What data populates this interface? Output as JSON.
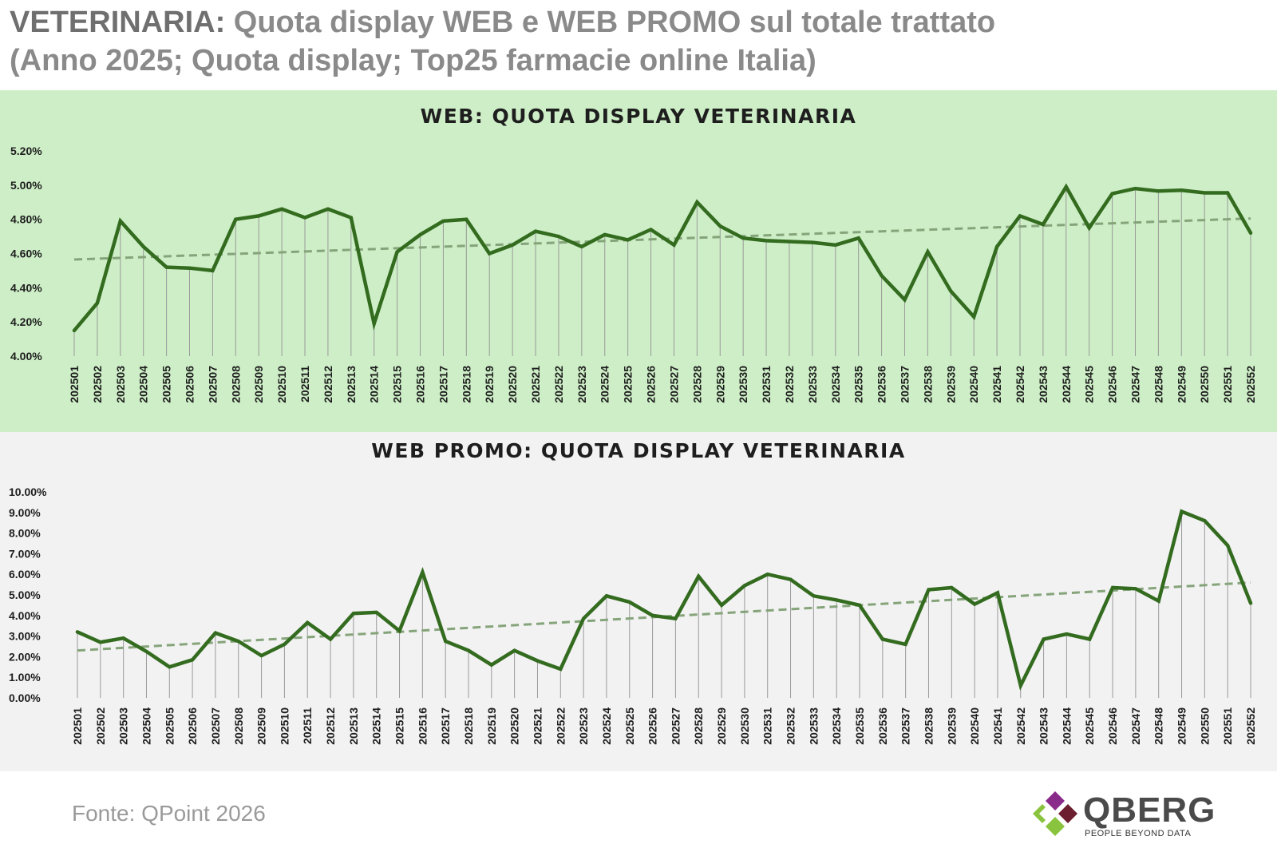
{
  "header": {
    "title_bold": "VETERINARIA:",
    "title_rest": " Quota display WEB e WEB PROMO sul totale trattato",
    "subtitle": "(Anno 2025; Quota display; Top25 farmacie online Italia)"
  },
  "footer": {
    "source": "Fonte: QPoint 2026",
    "logo_name": "QBERG",
    "logo_tagline": "PEOPLE BEYOND DATA"
  },
  "colors": {
    "line": "#336b1f",
    "trend": "#85a47a",
    "web_bg": "#cdeec6",
    "promo_bg": "#f2f2f2",
    "drop": "#9a9a9a"
  },
  "chart_data": [
    {
      "type": "line",
      "title": "WEB: QUOTA DISPLAY  VETERINARIA",
      "categories": [
        "202501",
        "202502",
        "202503",
        "202504",
        "202505",
        "202506",
        "202507",
        "202508",
        "202509",
        "202510",
        "202511",
        "202512",
        "202513",
        "202514",
        "202515",
        "202516",
        "202517",
        "202518",
        "202519",
        "202520",
        "202521",
        "202522",
        "202523",
        "202524",
        "202525",
        "202526",
        "202527",
        "202528",
        "202529",
        "202530",
        "202531",
        "202532",
        "202533",
        "202534",
        "202535",
        "202536",
        "202537",
        "202538",
        "202539",
        "202540",
        "202541",
        "202542",
        "202543",
        "202544",
        "202545",
        "202546",
        "202547",
        "202548",
        "202549",
        "202550",
        "202551",
        "202552"
      ],
      "series": [
        {
          "values": [
            4.15,
            4.31,
            4.79,
            4.64,
            4.52,
            4.515,
            4.5,
            4.8,
            4.82,
            4.86,
            4.81,
            4.86,
            4.81,
            4.19,
            4.61,
            4.71,
            4.79,
            4.8,
            4.6,
            4.65,
            4.73,
            4.7,
            4.64,
            4.71,
            4.68,
            4.74,
            4.65,
            4.9,
            4.76,
            4.69,
            4.675,
            4.67,
            4.665,
            4.65,
            4.69,
            4.47,
            4.33,
            4.61,
            4.38,
            4.23,
            4.64,
            4.82,
            4.77,
            4.99,
            4.75,
            4.95,
            4.98,
            4.965,
            4.97,
            4.955,
            4.955,
            4.72
          ]
        }
      ],
      "trendline": {
        "style": "dashed",
        "start": 4.565,
        "end": 4.805
      },
      "ylim": [
        4.0,
        5.2
      ],
      "yticks": [
        "4.00%",
        "4.20%",
        "4.40%",
        "4.60%",
        "4.80%",
        "5.00%",
        "5.20%"
      ],
      "grid": false,
      "drop_lines": true
    },
    {
      "type": "line",
      "title": "WEB PROMO: QUOTA DISPLAY  VETERINARIA",
      "categories": [
        "202501",
        "202502",
        "202503",
        "202504",
        "202505",
        "202506",
        "202507",
        "202508",
        "202509",
        "202510",
        "202511",
        "202512",
        "202513",
        "202514",
        "202515",
        "202516",
        "202517",
        "202518",
        "202519",
        "202520",
        "202521",
        "202522",
        "202523",
        "202524",
        "202525",
        "202526",
        "202527",
        "202528",
        "202529",
        "202530",
        "202531",
        "202532",
        "202533",
        "202534",
        "202535",
        "202536",
        "202537",
        "202538",
        "202539",
        "202540",
        "202541",
        "202542",
        "202543",
        "202544",
        "202545",
        "202546",
        "202547",
        "202548",
        "202549",
        "202550",
        "202551",
        "202552"
      ],
      "series": [
        {
          "values": [
            3.2,
            2.7,
            2.9,
            2.25,
            1.5,
            1.85,
            3.15,
            2.75,
            2.05,
            2.6,
            3.65,
            2.85,
            4.1,
            4.15,
            3.25,
            6.1,
            2.75,
            2.3,
            1.6,
            2.3,
            1.8,
            1.4,
            3.85,
            4.95,
            4.65,
            4.0,
            3.85,
            5.9,
            4.5,
            5.45,
            6.0,
            5.75,
            4.95,
            4.75,
            4.5,
            2.85,
            2.6,
            5.25,
            5.35,
            4.55,
            5.1,
            0.6,
            2.85,
            3.1,
            2.85,
            5.35,
            5.3,
            4.7,
            9.05,
            8.6,
            7.4,
            4.6
          ]
        }
      ],
      "trendline": {
        "style": "dashed",
        "start": 2.3,
        "end": 5.6
      },
      "ylim": [
        0.0,
        10.0
      ],
      "yticks": [
        "0.00%",
        "1.00%",
        "2.00%",
        "3.00%",
        "4.00%",
        "5.00%",
        "6.00%",
        "7.00%",
        "8.00%",
        "9.00%",
        "10.00%"
      ],
      "grid": false,
      "drop_lines": true
    }
  ]
}
